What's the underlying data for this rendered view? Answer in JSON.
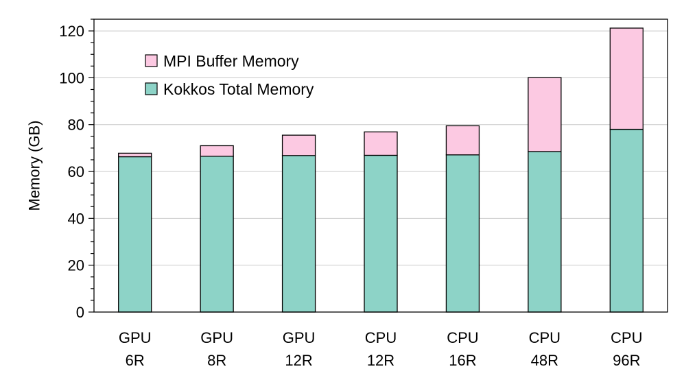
{
  "chart_data": {
    "type": "bar",
    "stacked": true,
    "categories": [
      [
        "GPU",
        "6R"
      ],
      [
        "GPU",
        "8R"
      ],
      [
        "GPU",
        "12R"
      ],
      [
        "CPU",
        "12R"
      ],
      [
        "CPU",
        "16R"
      ],
      [
        "CPU",
        "48R"
      ],
      [
        "CPU",
        "96R"
      ]
    ],
    "series": [
      {
        "name": "Kokkos Total Memory",
        "color": "#8dd3c7",
        "values": [
          66.3,
          66.5,
          66.8,
          66.9,
          67.1,
          68.5,
          78.0
        ]
      },
      {
        "name": "MPI Buffer Memory",
        "color": "#fcc9e2",
        "values": [
          1.5,
          4.5,
          8.7,
          10.0,
          12.4,
          31.6,
          43.2
        ]
      }
    ],
    "legend_order": [
      "MPI Buffer Memory",
      "Kokkos Total Memory"
    ],
    "legend_position": "top-left",
    "title": "",
    "xlabel": "",
    "ylabel": "Memory (GB)",
    "ylim": [
      0,
      125
    ],
    "yticks": [
      0,
      20,
      40,
      60,
      80,
      100,
      120
    ],
    "y_minor_step": 5,
    "grid": "horizontal major"
  }
}
